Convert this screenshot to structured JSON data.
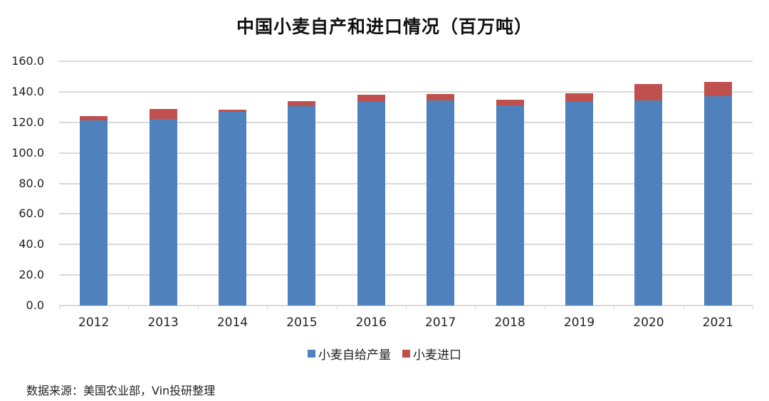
{
  "title": "中国小麦自产和进口情况（百万吨）",
  "source": "数据来源：美国农业部，Vin投研整理",
  "colors": {
    "domestic": "#4f81bd",
    "imports": "#c0504d",
    "grid": "#d9d9d9"
  },
  "legend": [
    {
      "label": "小麦自给产量",
      "color": "#4f81bd"
    },
    {
      "label": "小麦进口",
      "color": "#c0504d"
    }
  ],
  "yticks": [
    "0.0",
    "20.0",
    "40.0",
    "60.0",
    "80.0",
    "100.0",
    "120.0",
    "140.0",
    "160.0"
  ],
  "chart_data": {
    "type": "bar",
    "stacked": true,
    "title": "中国小麦自产和进口情况（百万吨）",
    "xlabel": "",
    "ylabel": "",
    "ylim": [
      0,
      160
    ],
    "yticks": [
      0,
      20,
      40,
      60,
      80,
      100,
      120,
      140,
      160
    ],
    "grid": true,
    "legend_position": "bottom",
    "categories": [
      "2012",
      "2013",
      "2014",
      "2015",
      "2016",
      "2017",
      "2018",
      "2019",
      "2020",
      "2021"
    ],
    "series": [
      {
        "name": "小麦自给产量",
        "color": "#4f81bd",
        "values": [
          121.2,
          122.0,
          126.7,
          130.4,
          133.5,
          134.4,
          131.0,
          133.5,
          134.4,
          136.9
        ]
      },
      {
        "name": "小麦进口",
        "color": "#c0504d",
        "values": [
          3.0,
          6.5,
          1.4,
          3.6,
          4.4,
          3.9,
          3.7,
          5.3,
          10.6,
          9.5
        ]
      }
    ],
    "source": "数据来源：美国农业部，Vin投研整理"
  }
}
